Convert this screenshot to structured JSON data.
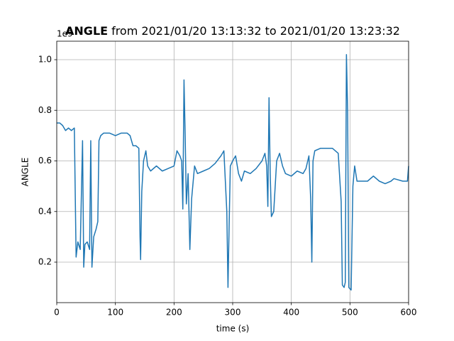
{
  "chart_data": {
    "type": "line",
    "title_bold": "ANGLE",
    "title": "from 2021/01/20 13:13:32 to 2021/01/20 13:23:32",
    "x_label": "time (s)",
    "y_label": "ANGLE",
    "y_offset_text": "1e9",
    "xlim": [
      0,
      600
    ],
    "ylim": [
      0.04,
      1.073
    ],
    "xticks": [
      0,
      100,
      200,
      300,
      400,
      500,
      600
    ],
    "yticks": [
      0.2,
      0.4,
      0.6,
      0.8,
      {
        "value": 1.0,
        "label": "1.0"
      }
    ],
    "grid": true,
    "series": [
      {
        "color": "#1f77b4",
        "x": [
          0,
          5,
          10,
          15,
          20,
          25,
          30,
          33,
          36,
          40,
          44,
          46,
          48,
          52,
          56,
          58,
          60,
          63,
          67,
          70,
          72,
          75,
          80,
          90,
          100,
          110,
          120,
          125,
          130,
          135,
          140,
          142,
          143,
          145,
          148,
          152,
          155,
          160,
          170,
          180,
          190,
          200,
          205,
          210,
          213,
          215,
          217,
          219,
          221,
          224,
          227,
          230,
          235,
          240,
          250,
          260,
          270,
          280,
          285,
          290,
          292,
          294,
          296,
          300,
          305,
          310,
          315,
          320,
          330,
          340,
          350,
          355,
          358,
          360,
          362,
          364,
          366,
          370,
          375,
          380,
          385,
          390,
          400,
          410,
          420,
          425,
          430,
          433,
          435,
          437,
          440,
          450,
          460,
          470,
          480,
          485,
          487,
          490,
          492,
          494,
          496,
          498,
          502,
          505,
          508,
          512,
          520,
          530,
          540,
          550,
          560,
          570,
          575,
          590,
          598,
          600
        ],
        "values": [
          0.75,
          0.75,
          0.74,
          0.72,
          0.73,
          0.72,
          0.73,
          0.22,
          0.28,
          0.25,
          0.68,
          0.18,
          0.27,
          0.28,
          0.25,
          0.68,
          0.18,
          0.3,
          0.33,
          0.36,
          0.68,
          0.7,
          0.71,
          0.71,
          0.7,
          0.71,
          0.71,
          0.7,
          0.66,
          0.66,
          0.65,
          0.3,
          0.21,
          0.48,
          0.6,
          0.64,
          0.58,
          0.56,
          0.58,
          0.56,
          0.57,
          0.58,
          0.64,
          0.62,
          0.6,
          0.41,
          0.92,
          0.7,
          0.43,
          0.55,
          0.25,
          0.45,
          0.58,
          0.55,
          0.56,
          0.57,
          0.59,
          0.62,
          0.64,
          0.4,
          0.1,
          0.35,
          0.58,
          0.6,
          0.62,
          0.55,
          0.52,
          0.56,
          0.55,
          0.57,
          0.6,
          0.63,
          0.58,
          0.42,
          0.85,
          0.55,
          0.38,
          0.4,
          0.6,
          0.63,
          0.58,
          0.55,
          0.54,
          0.56,
          0.55,
          0.57,
          0.62,
          0.45,
          0.2,
          0.6,
          0.64,
          0.65,
          0.65,
          0.65,
          0.63,
          0.44,
          0.11,
          0.1,
          0.12,
          1.02,
          0.8,
          0.1,
          0.09,
          0.5,
          0.58,
          0.52,
          0.52,
          0.52,
          0.54,
          0.52,
          0.51,
          0.52,
          0.53,
          0.52,
          0.52,
          0.58
        ]
      }
    ]
  }
}
